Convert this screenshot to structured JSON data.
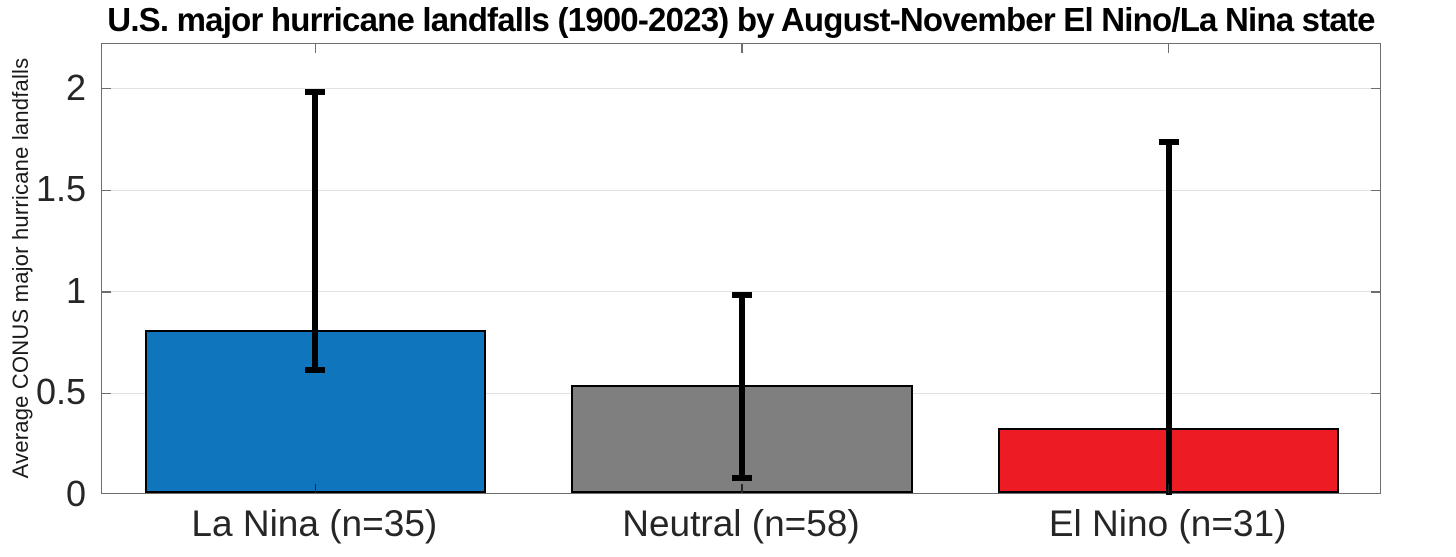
{
  "chart_data": {
    "type": "bar",
    "title": "U.S. major hurricane landfalls (1900-2023) by August-November El Nino/La Nina state",
    "xlabel": "",
    "ylabel": "Average CONUS major hurricane landfalls",
    "categories": [
      "La Nina (n=35)",
      "Neutral (n=58)",
      "El Nino (n=31)"
    ],
    "values": [
      0.8,
      0.53,
      0.32
    ],
    "error_bars": [
      {
        "low": 0.6,
        "high": 2.0
      },
      {
        "low": 0.07,
        "high": 1.0
      },
      {
        "low": 0.0,
        "high": 1.75
      }
    ],
    "bar_colors": [
      "#0f75bd",
      "#7f7f7f",
      "#ed1c24"
    ],
    "bar_edge_color": "#000000",
    "error_bar_color": "#000000",
    "yticks": [
      0,
      0.5,
      1,
      1.5,
      2
    ],
    "ytick_labels": [
      "0",
      "0.5",
      "1",
      "1.5",
      "2"
    ],
    "ylim": [
      0,
      2.22
    ],
    "bar_width_fraction": 0.8,
    "grid": "horizontal",
    "legend": null
  },
  "colors": {
    "background": "#ffffff",
    "grid_line": "#e2e2e2",
    "axis_box": "#6e6e6e",
    "axis_tick_dark": "#262626",
    "tick_label": "#262626",
    "title_text": "#000000"
  }
}
